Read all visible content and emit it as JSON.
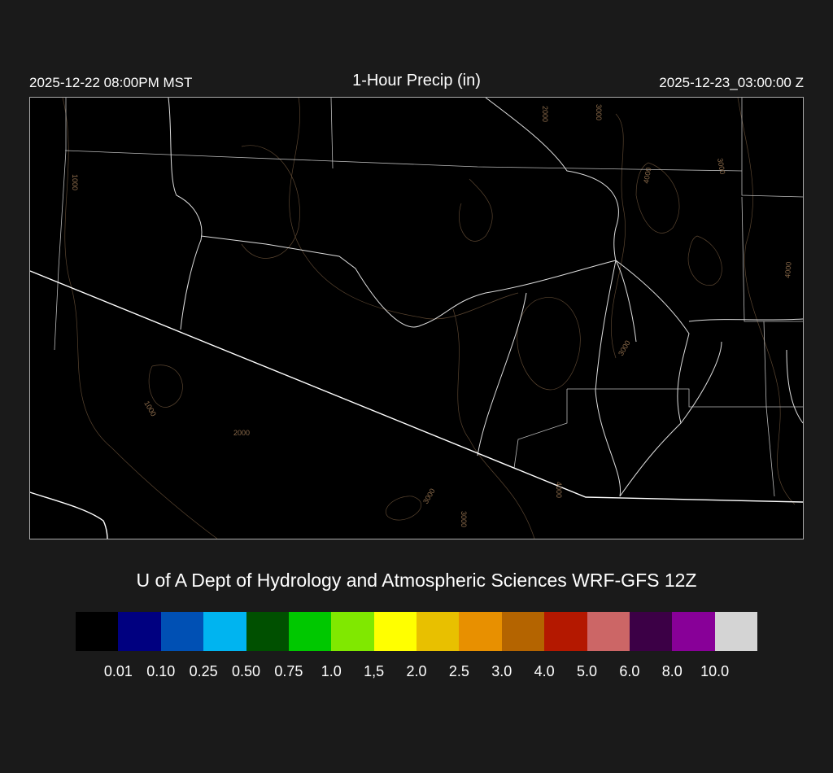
{
  "header": {
    "title": "1-Hour Precip (in)",
    "local_time": "2025-12-22 08:00PM MST",
    "valid_time": "2025-12-23_03:00:00 Z"
  },
  "credit": "U of A Dept of Hydrology and Atmospheric Sciences WRF-GFS 12Z",
  "map": {
    "contour_labels": [
      "1000",
      "2000",
      "3000",
      "4000",
      "3000",
      "4000",
      "3000",
      "1000",
      "2000",
      "3000",
      "3000",
      "4000"
    ],
    "contour_color": "#8a6a4a",
    "border_color": "#ffffff"
  },
  "colorbar": {
    "colors": [
      "#000000",
      "#000080",
      "#0050b4",
      "#00b4f0",
      "#005000",
      "#00c800",
      "#80e800",
      "#ffff00",
      "#e8c000",
      "#e89000",
      "#b46400",
      "#b41800",
      "#cc6666",
      "#3c0046",
      "#880098",
      "#d4d4d4"
    ],
    "labels": [
      "0.01",
      "0.10",
      "0.25",
      "0.50",
      "0.75",
      "1.0",
      "1,5",
      "2.0",
      "2.5",
      "3.0",
      "4.0",
      "5.0",
      "6.0",
      "8.0",
      "10.0"
    ]
  }
}
